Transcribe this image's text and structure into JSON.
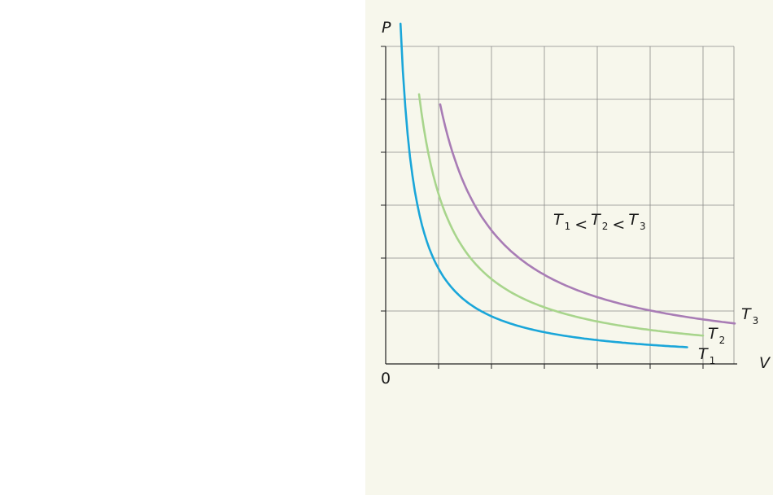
{
  "panel": {
    "background": "#f7f7ec"
  },
  "chart_data": {
    "type": "line",
    "title": "",
    "xlabel": "V",
    "ylabel": "P",
    "origin_label": "0",
    "xlim": [
      0,
      7
    ],
    "ylim": [
      0,
      6
    ],
    "grid": true,
    "grid_color": "#8a8a8a",
    "x_ticks": [
      1,
      2,
      3,
      4,
      5,
      6
    ],
    "y_ticks": [
      1,
      2,
      3,
      4,
      5,
      6
    ],
    "relation": {
      "parts": [
        {
          "main": "T",
          "sub": "1"
        },
        {
          "op": "<"
        },
        {
          "main": "T",
          "sub": "2"
        },
        {
          "op": "<"
        },
        {
          "main": "T",
          "sub": "3"
        }
      ]
    },
    "series": [
      {
        "name": "T1",
        "label_main": "T",
        "label_sub": "1",
        "color": "#1aa6d9",
        "k": 1.8,
        "x": [
          0.28,
          5.7
        ]
      },
      {
        "name": "T2",
        "label_main": "T",
        "label_sub": "2",
        "color": "#a8d58c",
        "k": 3.21,
        "x": [
          0.63,
          6.0
        ]
      },
      {
        "name": "T3",
        "label_main": "T",
        "label_sub": "3",
        "color": "#a87cb5",
        "k": 5.05,
        "x": [
          1.03,
          6.6
        ]
      }
    ]
  }
}
